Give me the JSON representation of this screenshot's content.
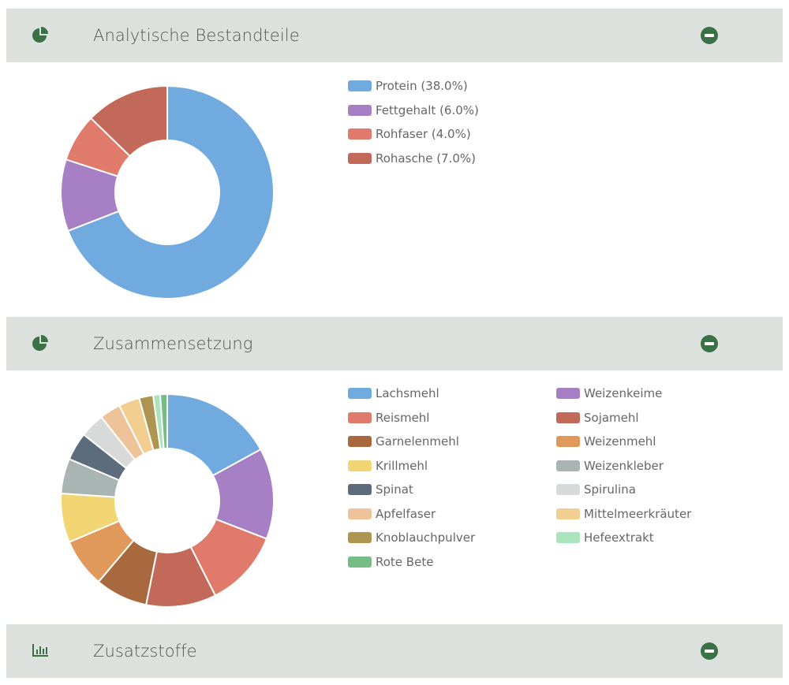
{
  "panels": [
    {
      "title": "Analytische Bestandteile",
      "icon": "pie-chart-icon"
    },
    {
      "title": "Zusammensetzung",
      "icon": "pie-chart-icon"
    },
    {
      "title": "Zusatzstoffe",
      "icon": "bar-chart-icon"
    }
  ],
  "chart_data": [
    {
      "type": "pie",
      "style": "donut",
      "labels": [
        "Protein (38.0%)",
        "Fettgehalt (6.0%)",
        "Rohfaser (4.0%)",
        "Rohasche (7.0%)"
      ],
      "values": [
        38.0,
        6.0,
        4.0,
        7.0
      ],
      "colors": [
        "#70aadf",
        "#a77fc4",
        "#e07b6b",
        "#c2695a"
      ]
    },
    {
      "type": "pie",
      "style": "donut",
      "labels": [
        "Lachsmehl",
        "Weizenkeime",
        "Reismehl",
        "Sojamehl",
        "Garnelenmehl",
        "Weizenmehl",
        "Krillmehl",
        "Weizenkleber",
        "Spinat",
        "Spirulina",
        "Apfelfaser",
        "Mittelmeerkräuter",
        "Knoblauchpulver",
        "Hefeextrakt",
        "Rote Bete"
      ],
      "values": [
        16,
        13,
        11,
        10,
        7.5,
        7,
        7,
        5,
        4,
        3.5,
        3,
        3,
        2,
        1,
        1
      ],
      "colors": [
        "#70aadf",
        "#a77fc4",
        "#e07b6b",
        "#c2695a",
        "#a9693f",
        "#e0995a",
        "#f1d673",
        "#aab5b3",
        "#5d6c7c",
        "#d8d9d9",
        "#eec399",
        "#f2cf91",
        "#ae9650",
        "#a9e4bd",
        "#75bd85"
      ]
    }
  ]
}
